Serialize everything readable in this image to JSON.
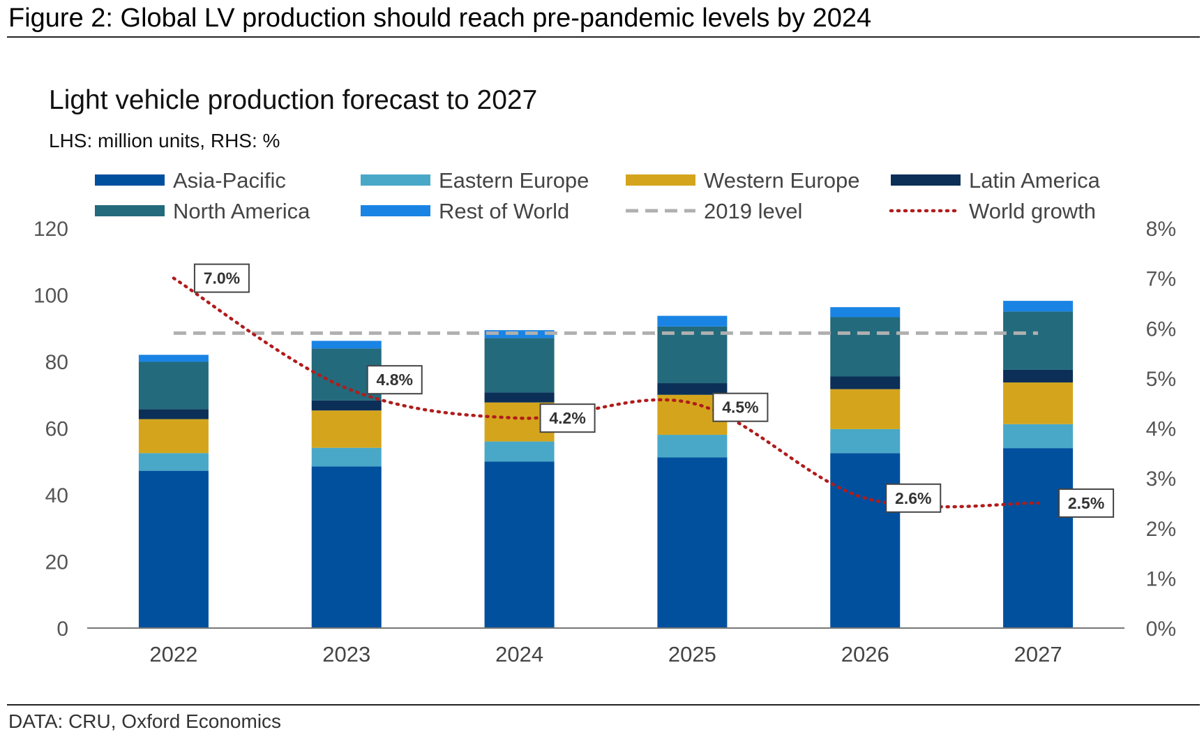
{
  "figure": {
    "title": "Figure 2: Global LV production should reach pre-pandemic levels by 2024",
    "source": "DATA: CRU, Oxford Economics"
  },
  "chart_data": {
    "type": "bar",
    "stacked": true,
    "title": "Light vehicle production forecast to 2027",
    "subtitle": "LHS: million units, RHS: %",
    "categories": [
      "2022",
      "2023",
      "2024",
      "2025",
      "2026",
      "2027"
    ],
    "ylim_left": [
      0,
      120
    ],
    "yticks_left": [
      "0",
      "20",
      "40",
      "60",
      "80",
      "100",
      "120"
    ],
    "ylim_right": [
      0,
      8
    ],
    "yticks_right": [
      "0%",
      "1%",
      "2%",
      "3%",
      "4%",
      "5%",
      "6%",
      "7%",
      "8%"
    ],
    "series": [
      {
        "name": "Asia-Pacific",
        "color": "#00509e",
        "values": [
          47.2,
          48.5,
          50.0,
          51.2,
          52.5,
          54.0
        ]
      },
      {
        "name": "Eastern Europe",
        "color": "#49a8c7",
        "values": [
          5.3,
          5.6,
          6.0,
          6.8,
          7.2,
          7.2
        ]
      },
      {
        "name": "Western Europe",
        "color": "#d4a51c",
        "values": [
          10.2,
          11.2,
          11.7,
          12.0,
          12.0,
          12.5
        ]
      },
      {
        "name": "Latin America",
        "color": "#0b2f57",
        "values": [
          3.0,
          3.0,
          3.0,
          3.5,
          3.8,
          3.8
        ]
      },
      {
        "name": "North America",
        "color": "#236a7c",
        "values": [
          14.2,
          15.6,
          16.3,
          17.0,
          17.8,
          17.5
        ]
      },
      {
        "name": "Rest of World",
        "color": "#1a84e4",
        "values": [
          2.1,
          2.3,
          2.4,
          3.2,
          3.0,
          3.2
        ]
      }
    ],
    "reference_line": {
      "name": "2019 level",
      "value": 88.5,
      "color": "#b0b0b0",
      "style": "dashed"
    },
    "line_series": {
      "name": "World growth",
      "axis": "right",
      "color": "#b01c1c",
      "style": "dotted",
      "values": [
        7.0,
        4.8,
        4.2,
        4.5,
        2.6,
        2.5
      ],
      "labels": [
        "7.0%",
        "4.8%",
        "4.2%",
        "4.5%",
        "2.6%",
        "2.5%"
      ]
    },
    "legend_position": "top",
    "grid": false
  }
}
